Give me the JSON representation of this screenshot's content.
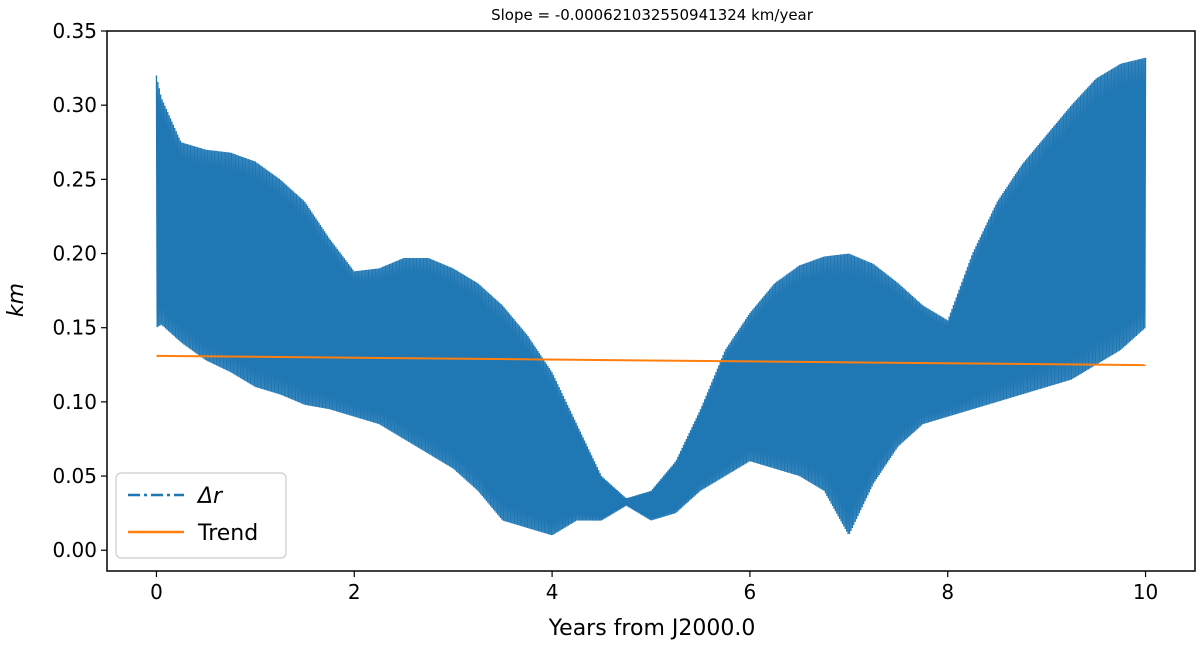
{
  "chart_data": {
    "type": "line",
    "title": "Slope = -0.000621032550941324 km/year",
    "xlabel": "Years from J2000.0",
    "ylabel": "km",
    "xlim": [
      -0.5,
      10.5
    ],
    "ylim": [
      -0.014,
      0.35
    ],
    "xticks": [
      0,
      2,
      4,
      6,
      8,
      10
    ],
    "xtick_labels": [
      "0",
      "2",
      "4",
      "6",
      "8",
      "10"
    ],
    "yticks": [
      0.0,
      0.05,
      0.1,
      0.15,
      0.2,
      0.25,
      0.3,
      0.35
    ],
    "ytick_labels": [
      "0.00",
      "0.05",
      "0.10",
      "0.15",
      "0.20",
      "0.25",
      "0.30",
      "0.35"
    ],
    "grid": false,
    "legend_position": "lower-left",
    "series": [
      {
        "name": "Δr",
        "color": "#1f77b4",
        "style": "dash-dot",
        "note_oscillating": true,
        "x": [
          0.0,
          0.05,
          0.25,
          0.5,
          0.75,
          1.0,
          1.25,
          1.5,
          1.75,
          2.0,
          2.25,
          2.5,
          2.75,
          3.0,
          3.25,
          3.5,
          3.75,
          4.0,
          4.25,
          4.5,
          4.75,
          5.0,
          5.25,
          5.5,
          5.75,
          6.0,
          6.25,
          6.5,
          6.75,
          7.0,
          7.25,
          7.5,
          7.75,
          8.0,
          8.25,
          8.5,
          8.75,
          9.0,
          9.25,
          9.5,
          9.75,
          10.0
        ],
        "upper": [
          0.32,
          0.305,
          0.275,
          0.27,
          0.268,
          0.262,
          0.25,
          0.235,
          0.21,
          0.188,
          0.19,
          0.197,
          0.197,
          0.19,
          0.18,
          0.165,
          0.145,
          0.12,
          0.085,
          0.05,
          0.035,
          0.04,
          0.06,
          0.095,
          0.135,
          0.16,
          0.18,
          0.192,
          0.198,
          0.2,
          0.193,
          0.18,
          0.165,
          0.155,
          0.2,
          0.235,
          0.26,
          0.28,
          0.3,
          0.318,
          0.328,
          0.332
        ],
        "lower": [
          0.15,
          0.152,
          0.14,
          0.128,
          0.12,
          0.11,
          0.105,
          0.098,
          0.095,
          0.09,
          0.085,
          0.075,
          0.065,
          0.055,
          0.04,
          0.02,
          0.015,
          0.01,
          0.02,
          0.02,
          0.03,
          0.02,
          0.025,
          0.04,
          0.05,
          0.06,
          0.055,
          0.05,
          0.04,
          0.01,
          0.045,
          0.07,
          0.085,
          0.09,
          0.095,
          0.1,
          0.105,
          0.11,
          0.115,
          0.125,
          0.135,
          0.15
        ]
      },
      {
        "name": "Trend",
        "color": "#ff7f0e",
        "style": "solid",
        "x": [
          0,
          10
        ],
        "y": [
          0.131,
          0.1248
        ]
      }
    ]
  }
}
